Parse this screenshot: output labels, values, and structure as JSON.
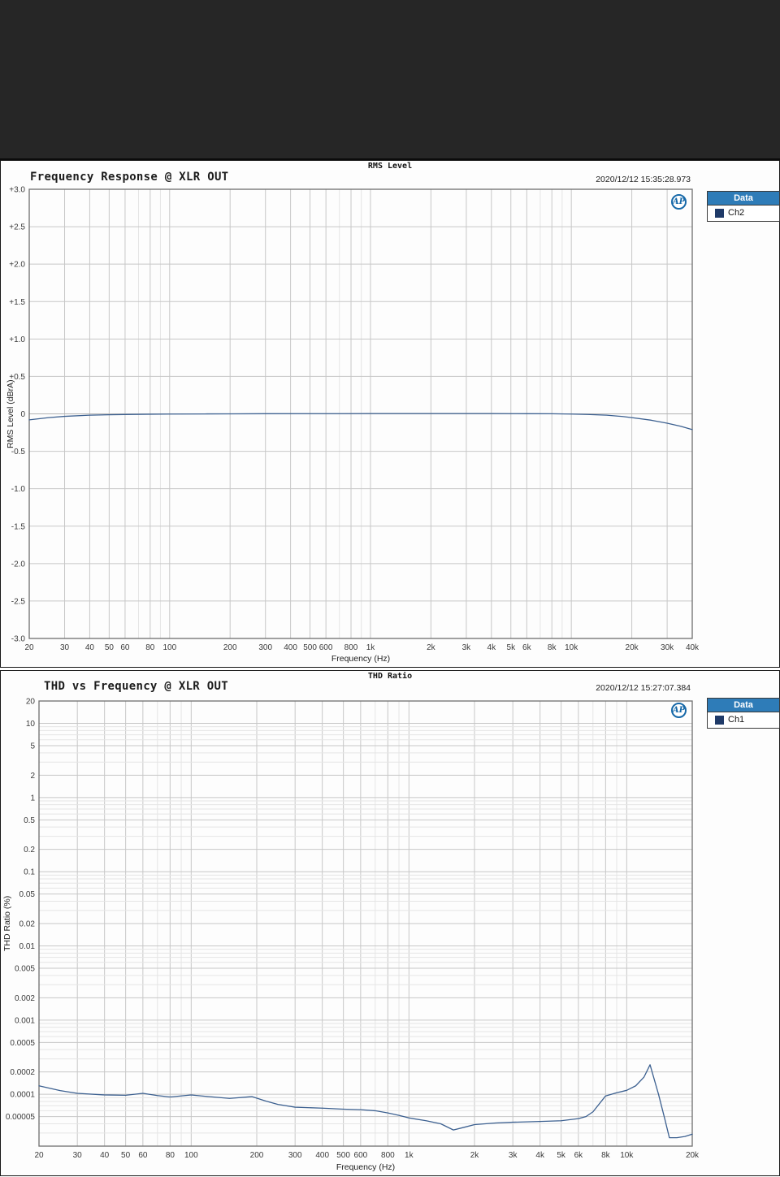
{
  "theme": {
    "band_bg": "#262626",
    "legend_header_bg": "#2e7cb8",
    "logo_text": "AP",
    "logo_color": "#1668a8"
  },
  "charts": [
    {
      "window_title": "RMS Level",
      "title": "Frequency Response @ XLR OUT",
      "timestamp": "2020/12/12 15:35:28.973",
      "legend": {
        "header": "Data",
        "entries": [
          {
            "label": "Ch2",
            "color": "#1f3a68"
          }
        ]
      },
      "chart_data": {
        "type": "line",
        "xscale": "log",
        "yscale": "linear",
        "xlim": [
          20,
          40000
        ],
        "ylim": [
          -3,
          3
        ],
        "xlabel": "Frequency (Hz)",
        "ylabel": "RMS Level (dBrA)",
        "grid": true,
        "legend_position": "outside-top-right",
        "xticks": [
          20,
          30,
          40,
          50,
          60,
          80,
          100,
          200,
          300,
          400,
          500,
          600,
          800,
          1000,
          2000,
          3000,
          4000,
          5000,
          6000,
          8000,
          10000,
          20000,
          30000,
          40000
        ],
        "xtick_labels": [
          "20",
          "30",
          "40",
          "50",
          "60",
          "80",
          "100",
          "200",
          "300",
          "400",
          "500",
          "600",
          "800",
          "1k",
          "2k",
          "3k",
          "4k",
          "5k",
          "6k",
          "8k",
          "10k",
          "20k",
          "30k",
          "40k"
        ],
        "yticks": [
          3,
          2.5,
          2,
          1.5,
          1,
          0.5,
          0,
          -0.5,
          -1,
          -1.5,
          -2,
          -2.5,
          -3
        ],
        "ytick_labels": [
          "+3.0",
          "+2.5",
          "+2.0",
          "+1.5",
          "+1.0",
          "+0.5",
          "0",
          "-0.5",
          "-1.0",
          "-1.5",
          "-2.0",
          "-2.5",
          "-3.0"
        ],
        "series": [
          {
            "name": "Ch2",
            "color": "#3c6090",
            "x": [
              20,
              25,
              30,
              40,
              50,
              60,
              80,
              100,
              150,
              200,
              300,
              500,
              700,
              1000,
              1500,
              2000,
              3000,
              4000,
              5000,
              6000,
              8000,
              10000,
              12000,
              15000,
              18000,
              20000,
              25000,
              30000,
              35000,
              40000
            ],
            "y": [
              -0.08,
              -0.05,
              -0.033,
              -0.018,
              -0.012,
              -0.009,
              -0.005,
              -0.003,
              -0.001,
              0,
              0.002,
              0.003,
              0.003,
              0.004,
              0.004,
              0.004,
              0.004,
              0.004,
              0.003,
              0.002,
              0.001,
              -0.003,
              -0.008,
              -0.018,
              -0.035,
              -0.05,
              -0.085,
              -0.125,
              -0.165,
              -0.21
            ]
          }
        ]
      }
    },
    {
      "window_title": "THD Ratio",
      "title": "THD vs Frequency @ XLR OUT",
      "timestamp": "2020/12/12 15:27:07.384",
      "legend": {
        "header": "Data",
        "entries": [
          {
            "label": "Ch1",
            "color": "#1f3a68"
          }
        ]
      },
      "chart_data": {
        "type": "line",
        "xscale": "log",
        "yscale": "log",
        "xlim": [
          20,
          20000
        ],
        "ylim": [
          2e-05,
          20
        ],
        "xlabel": "Frequency (Hz)",
        "ylabel": "THD Ratio (%)",
        "grid": true,
        "legend_position": "outside-top-right",
        "xticks": [
          20,
          30,
          40,
          50,
          60,
          80,
          100,
          200,
          300,
          400,
          500,
          600,
          800,
          1000,
          2000,
          3000,
          4000,
          5000,
          6000,
          8000,
          10000,
          20000
        ],
        "xtick_labels": [
          "20",
          "30",
          "40",
          "50",
          "60",
          "80",
          "100",
          "200",
          "300",
          "400",
          "500",
          "600",
          "800",
          "1k",
          "2k",
          "3k",
          "4k",
          "5k",
          "6k",
          "8k",
          "10k",
          "20k"
        ],
        "yticks": [
          20,
          10,
          5,
          2,
          1,
          0.5,
          0.2,
          0.1,
          0.05,
          0.02,
          0.01,
          0.005,
          0.002,
          0.001,
          0.0005,
          0.0002,
          0.0001,
          5e-05
        ],
        "ytick_labels": [
          "20",
          "10",
          "5",
          "2",
          "1",
          "0.5",
          "0.2",
          "0.1",
          "0.05",
          "0.02",
          "0.01",
          "0.005",
          "0.002",
          "0.001",
          "0.0005",
          "0.0002",
          "0.0001",
          "0.00005"
        ],
        "series": [
          {
            "name": "Ch1",
            "color": "#3c6090",
            "x": [
              20,
              25,
              30,
              40,
              50,
              60,
              70,
              80,
              100,
              120,
              150,
              190,
              220,
              250,
              300,
              400,
              500,
              600,
              700,
              800,
              900,
              1000,
              1200,
              1400,
              1600,
              1800,
              2000,
              2500,
              3000,
              4000,
              5000,
              6000,
              6500,
              7000,
              8000,
              9000,
              10000,
              11000,
              12000,
              12800,
              14000,
              15000,
              15700,
              17000,
              18500,
              20000
            ],
            "y": [
              0.00013,
              0.000112,
              0.000103,
              9.8e-05,
              9.7e-05,
              0.000103,
              9.6e-05,
              9.2e-05,
              9.8e-05,
              9.3e-05,
              8.8e-05,
              9.3e-05,
              8.1e-05,
              7.3e-05,
              6.7e-05,
              6.5e-05,
              6.3e-05,
              6.2e-05,
              6e-05,
              5.6e-05,
              5.2e-05,
              4.8e-05,
              4.4e-05,
              4e-05,
              3.3e-05,
              3.6e-05,
              3.9e-05,
              4.1e-05,
              4.2e-05,
              4.3e-05,
              4.4e-05,
              4.7e-05,
              5e-05,
              5.8e-05,
              9.5e-05,
              0.000105,
              0.000113,
              0.00013,
              0.00017,
              0.00025,
              0.0001,
              4.5e-05,
              2.6e-05,
              2.6e-05,
              2.7e-05,
              2.9e-05
            ]
          }
        ]
      }
    }
  ]
}
